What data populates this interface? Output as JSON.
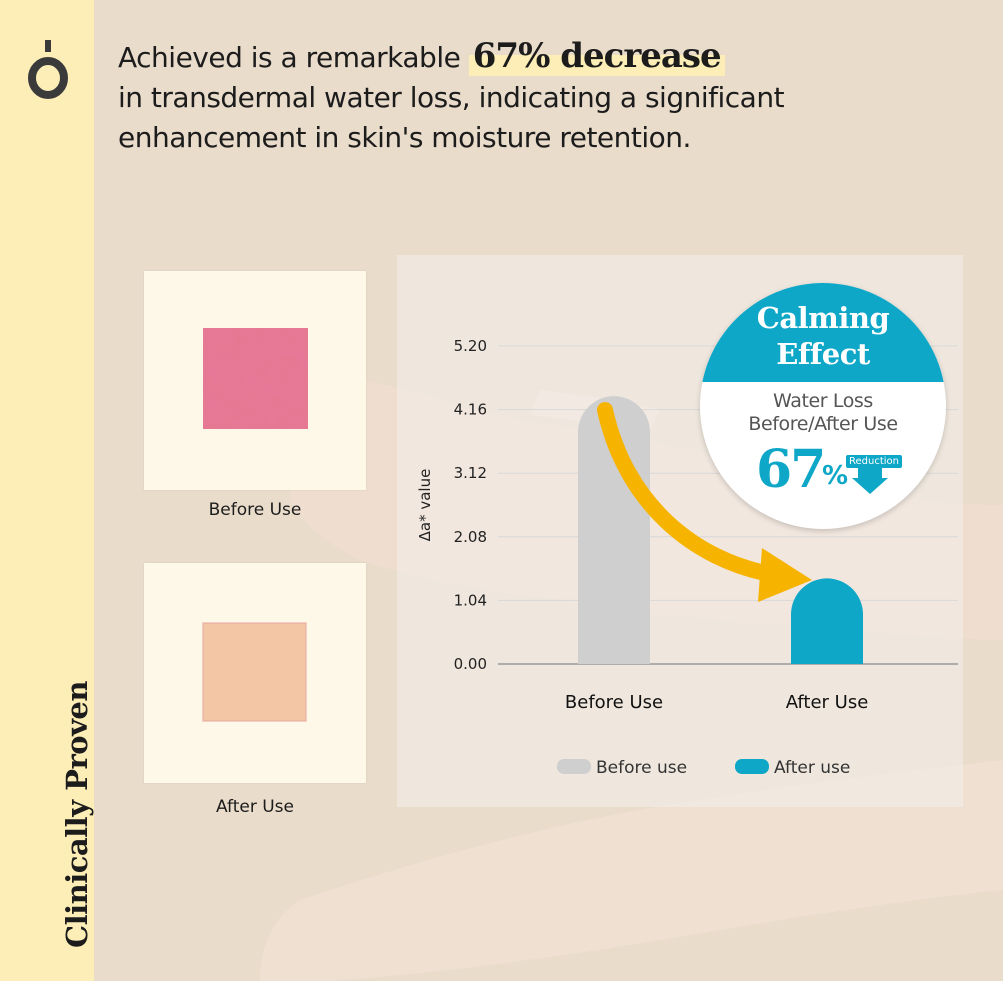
{
  "sidebar": {
    "label": "Clinically Proven"
  },
  "headline": {
    "part1": "Achieved is a remarkable",
    "highlight": "67% decrease",
    "part2": "in transdermal water loss, indicating a significant enhancement in skin's moisture retention."
  },
  "swatches": {
    "before_label": "Before Use",
    "after_label": "After Use"
  },
  "badge": {
    "title_line1": "Calming",
    "title_line2": "Effect",
    "subtitle_line1": "Water Loss",
    "subtitle_line2": "Before/After Use",
    "value": "67",
    "unit": "%",
    "tag": "Reduction"
  },
  "chart_data": {
    "type": "bar",
    "categories": [
      "Before Use",
      "After Use"
    ],
    "values": [
      4.38,
      1.4
    ],
    "ylabel": "Δa* value",
    "ylim": [
      0,
      5.2
    ],
    "yticks": [
      "0.00",
      "1.04",
      "2.08",
      "3.12",
      "4.16",
      "5.20"
    ],
    "legend": [
      "Before use",
      "After use"
    ],
    "legend_position": "bottom-center",
    "grid": true,
    "colors": [
      "#cfcfcf",
      "#0fa7c7"
    ],
    "arrow_color": "#f6b400"
  }
}
